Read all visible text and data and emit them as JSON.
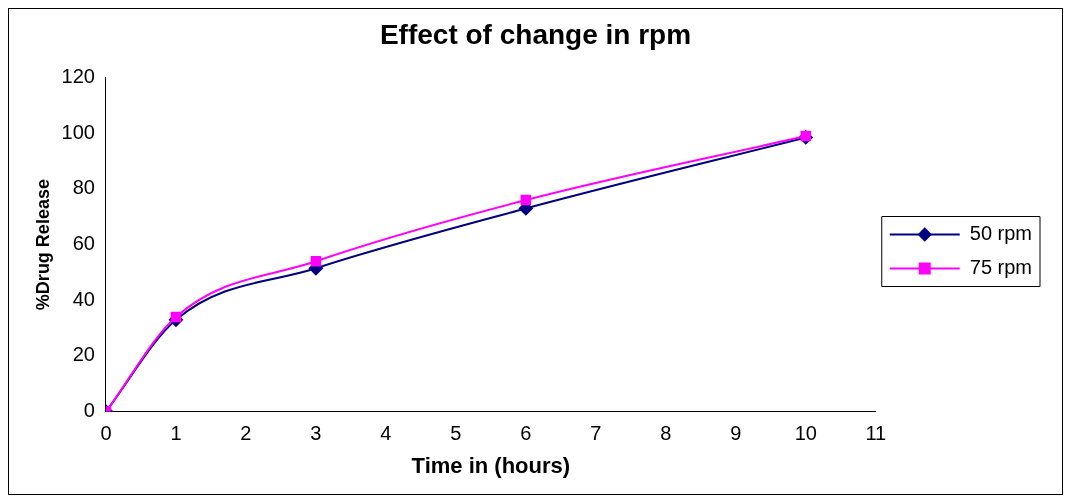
{
  "chart_data": {
    "type": "line",
    "title": "Effect of change in rpm",
    "xlabel": "Time in (hours)",
    "ylabel": "%Drug Release",
    "x": [
      0,
      1,
      3,
      6,
      10
    ],
    "xlim": [
      0,
      11
    ],
    "xticks": [
      0,
      1,
      2,
      3,
      4,
      5,
      6,
      7,
      8,
      9,
      10,
      11
    ],
    "ylim": [
      0,
      120
    ],
    "yticks": [
      0,
      20,
      40,
      60,
      80,
      100,
      120
    ],
    "grid": false,
    "legend": "right",
    "series": [
      {
        "name": "50 rpm",
        "color": "#000080",
        "marker": "diamond",
        "values": [
          0,
          33,
          51.5,
          73,
          98.5
        ]
      },
      {
        "name": "75 rpm",
        "color": "#ff00ff",
        "marker": "square",
        "values": [
          0,
          34,
          54,
          76,
          99
        ]
      }
    ]
  }
}
